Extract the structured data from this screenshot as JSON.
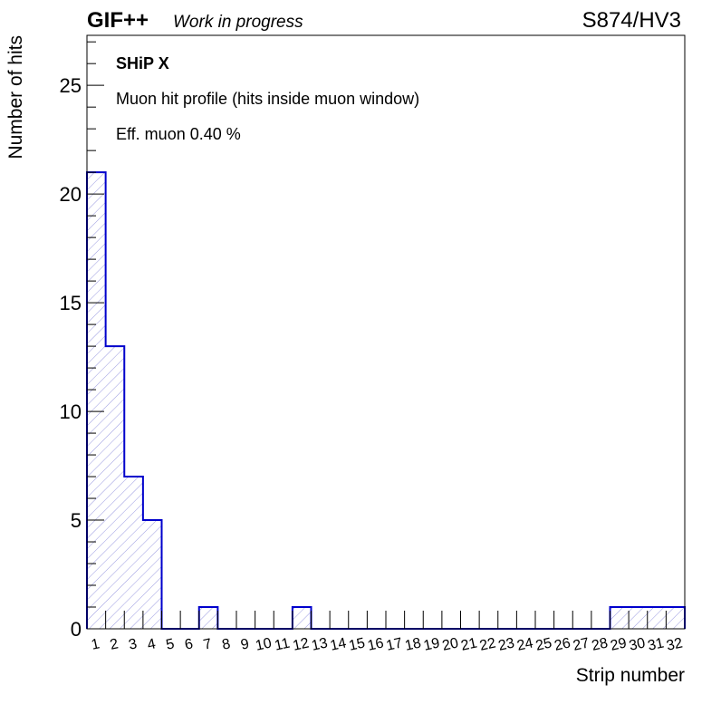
{
  "header": {
    "experiment": "GIF++",
    "status": "Work in progress",
    "run_label": "S874/HV3"
  },
  "annotations": {
    "detector": "SHiP X",
    "description": "Muon hit profile (hits inside muon window)",
    "efficiency": "Eff. muon 0.40 %"
  },
  "colors": {
    "histogram_line": "#0000cc",
    "hatch": "#9a9ae0",
    "axis": "#000000"
  },
  "chart_data": {
    "type": "bar",
    "style": "histogram-step-hatched",
    "xlabel": "Strip number",
    "ylabel": "Number of hits",
    "categories": [
      "1",
      "2",
      "3",
      "4",
      "5",
      "6",
      "7",
      "8",
      "9",
      "10",
      "11",
      "12",
      "13",
      "14",
      "15",
      "16",
      "17",
      "18",
      "19",
      "20",
      "21",
      "22",
      "23",
      "24",
      "25",
      "26",
      "27",
      "28",
      "29",
      "30",
      "31",
      "32"
    ],
    "values": [
      21,
      13,
      7,
      5,
      0,
      0,
      1,
      0,
      0,
      0,
      0,
      1,
      0,
      0,
      0,
      0,
      0,
      0,
      0,
      0,
      0,
      0,
      0,
      0,
      0,
      0,
      0,
      0,
      1,
      1,
      1,
      1
    ],
    "ylim": [
      0,
      27.3
    ],
    "y_major_ticks": [
      0,
      5,
      10,
      15,
      20,
      25
    ],
    "y_minor_step": 1,
    "grid": false,
    "legend": "none"
  }
}
